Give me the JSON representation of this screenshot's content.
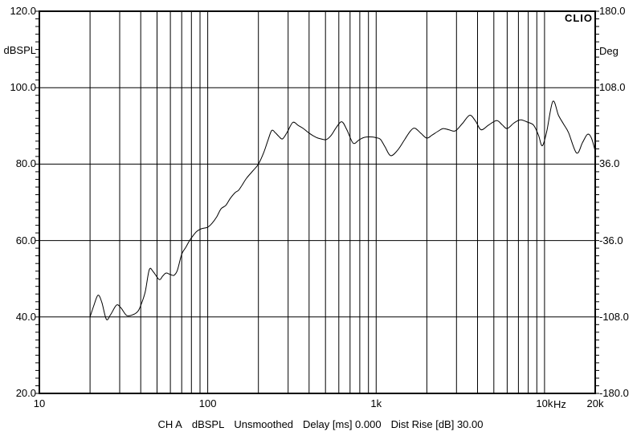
{
  "brand": "CLIO",
  "colors": {
    "background": "#ffffff",
    "foreground": "#000000",
    "grid": "#000000",
    "curve": "#000000"
  },
  "chart_data": {
    "type": "line",
    "title": "",
    "x_axis": {
      "scale": "log",
      "min": 10,
      "max": 20000,
      "unit_label": "Hz",
      "ticks": [
        {
          "f": 10,
          "label": "10"
        },
        {
          "f": 100,
          "label": "100"
        },
        {
          "f": 1000,
          "label": "1k"
        },
        {
          "f": 10000,
          "label": "10k"
        },
        {
          "f": 20000,
          "label": "20k"
        }
      ]
    },
    "y_left": {
      "label": "dBSPL",
      "min": 20,
      "max": 120,
      "major_step": 20,
      "minor_tick_step": 2,
      "ticks": [
        {
          "v": 120,
          "label": "120.0"
        },
        {
          "v": 100,
          "label": "100.0"
        },
        {
          "v": 80,
          "label": "80.0"
        },
        {
          "v": 60,
          "label": "60.0"
        },
        {
          "v": 40,
          "label": "40.0"
        },
        {
          "v": 20,
          "label": "20.0"
        }
      ]
    },
    "y_right": {
      "label": "Deg",
      "min": -180,
      "max": 180,
      "major_step": 72,
      "ticks": [
        {
          "v": 180,
          "label": "180.0"
        },
        {
          "v": 108,
          "label": "108.0"
        },
        {
          "v": 36,
          "label": "36.0"
        },
        {
          "v": -36,
          "label": "-36.0"
        },
        {
          "v": -108,
          "label": "-108.0"
        },
        {
          "v": -180,
          "label": "-180.0"
        }
      ]
    },
    "grid": true,
    "legend": "none",
    "series": [
      {
        "name": "CH A dBSPL",
        "color": "#000000",
        "points": [
          [
            20,
            40.0
          ],
          [
            21,
            42.8
          ],
          [
            22.3,
            45.7
          ],
          [
            23.5,
            43.8
          ],
          [
            25,
            39.4
          ],
          [
            26.5,
            40.6
          ],
          [
            28.7,
            43.1
          ],
          [
            30.5,
            42.4
          ],
          [
            33,
            40.4
          ],
          [
            36,
            40.6
          ],
          [
            38.5,
            41.5
          ],
          [
            40,
            43.0
          ],
          [
            42.5,
            46.5
          ],
          [
            45,
            52.4
          ],
          [
            47.5,
            51.8
          ],
          [
            51.5,
            49.8
          ],
          [
            54,
            50.7
          ],
          [
            56.5,
            51.5
          ],
          [
            60,
            51.1
          ],
          [
            63,
            50.9
          ],
          [
            66,
            52.2
          ],
          [
            70,
            56.4
          ],
          [
            74,
            58.2
          ],
          [
            78,
            60.0
          ],
          [
            81,
            61.0
          ],
          [
            86,
            62.4
          ],
          [
            92,
            63.1
          ],
          [
            100,
            63.5
          ],
          [
            106,
            64.5
          ],
          [
            113,
            66.2
          ],
          [
            120,
            68.3
          ],
          [
            128,
            69.2
          ],
          [
            136,
            71.0
          ],
          [
            145,
            72.5
          ],
          [
            152,
            73.1
          ],
          [
            160,
            74.5
          ],
          [
            170,
            76.3
          ],
          [
            185,
            78.2
          ],
          [
            200,
            80.0
          ],
          [
            215,
            83.0
          ],
          [
            228,
            86.3
          ],
          [
            240,
            88.8
          ],
          [
            252,
            88.2
          ],
          [
            265,
            87.2
          ],
          [
            278,
            86.6
          ],
          [
            295,
            88.2
          ],
          [
            320,
            90.9
          ],
          [
            345,
            90.1
          ],
          [
            370,
            89.3
          ],
          [
            400,
            88.1
          ],
          [
            440,
            87.0
          ],
          [
            470,
            86.6
          ],
          [
            505,
            86.4
          ],
          [
            540,
            87.5
          ],
          [
            580,
            89.6
          ],
          [
            625,
            91.1
          ],
          [
            670,
            89.0
          ],
          [
            730,
            85.5
          ],
          [
            790,
            86.3
          ],
          [
            850,
            87.0
          ],
          [
            950,
            87.1
          ],
          [
            1000,
            86.9
          ],
          [
            1060,
            86.5
          ],
          [
            1130,
            84.5
          ],
          [
            1220,
            82.2
          ],
          [
            1350,
            83.8
          ],
          [
            1480,
            86.5
          ],
          [
            1600,
            88.7
          ],
          [
            1700,
            89.4
          ],
          [
            1850,
            88.0
          ],
          [
            2000,
            86.8
          ],
          [
            2150,
            87.6
          ],
          [
            2350,
            88.7
          ],
          [
            2500,
            89.3
          ],
          [
            2700,
            89.0
          ],
          [
            2950,
            88.7
          ],
          [
            3250,
            90.6
          ],
          [
            3600,
            92.8
          ],
          [
            3900,
            91.2
          ],
          [
            4200,
            89.0
          ],
          [
            4650,
            90.2
          ],
          [
            5200,
            91.4
          ],
          [
            5600,
            90.3
          ],
          [
            6000,
            89.3
          ],
          [
            6600,
            90.8
          ],
          [
            7200,
            91.6
          ],
          [
            7900,
            91.0
          ],
          [
            8600,
            90.2
          ],
          [
            9200,
            87.6
          ],
          [
            9700,
            84.8
          ],
          [
            10300,
            88.5
          ],
          [
            11200,
            96.4
          ],
          [
            12100,
            92.8
          ],
          [
            13000,
            90.4
          ],
          [
            13900,
            88.2
          ],
          [
            15500,
            82.9
          ],
          [
            16800,
            85.6
          ],
          [
            18000,
            87.8
          ],
          [
            19000,
            86.8
          ],
          [
            20000,
            83.4
          ]
        ]
      }
    ],
    "caption_segments": [
      "CH A",
      "dBSPL",
      "Unsmoothed",
      "Delay [ms] 0.000",
      "Dist Rise [dB] 30.00"
    ]
  }
}
